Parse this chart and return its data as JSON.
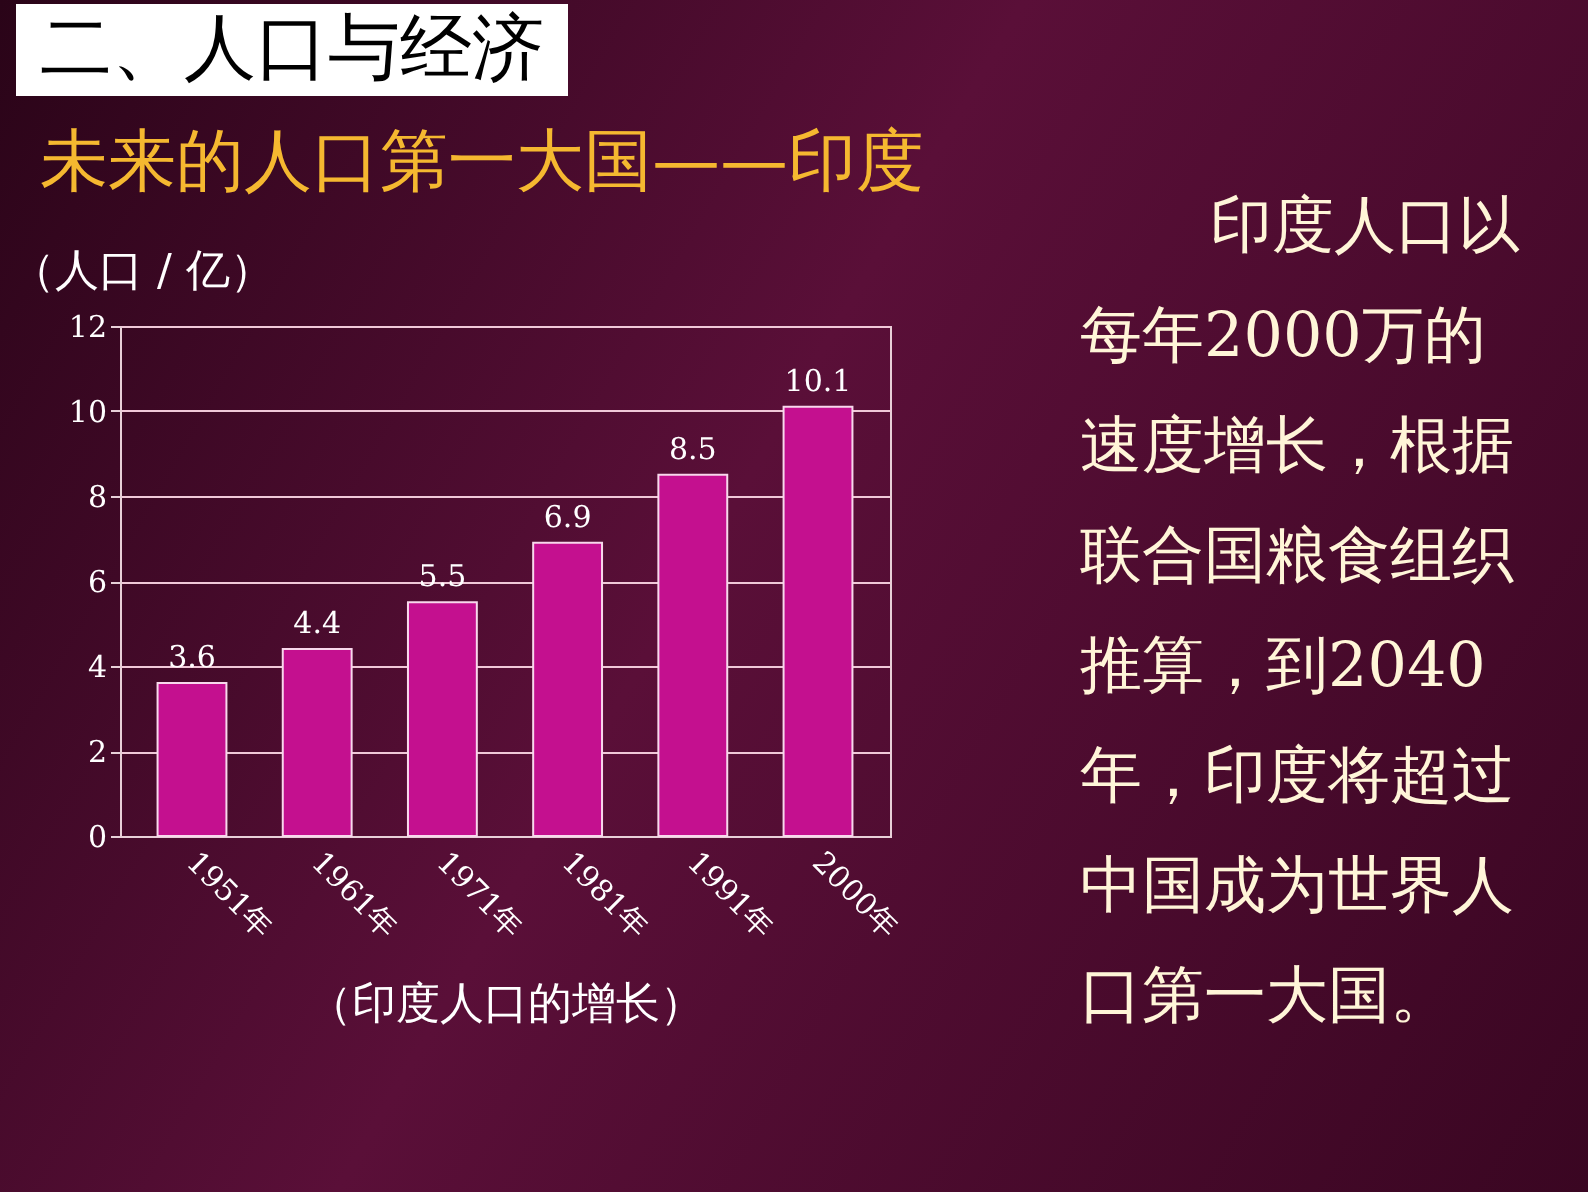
{
  "chart_data": {
    "type": "bar",
    "title": "二、人口与经济",
    "subtitle": "未来的人口第一大国——印度",
    "ylabel": "（人口 / 亿）",
    "xlabel": "（印度人口的增长）",
    "annotations": [
      "印度人口以每年2000万的速度增长，根据联合国粮食组织推算，到2040年，印度将超过中国成为世界人口第一大国。"
    ],
    "categories": [
      "1951年",
      "1961年",
      "1971年",
      "1981年",
      "1991年",
      "2000年"
    ],
    "values": [
      3.6,
      4.4,
      5.5,
      6.9,
      8.5,
      10.1
    ],
    "color": "#c4108f",
    "ylim": [
      0,
      12
    ],
    "yticks": [
      0,
      2,
      4,
      6,
      8,
      10,
      12
    ],
    "grid": "y",
    "data_labels": true
  }
}
